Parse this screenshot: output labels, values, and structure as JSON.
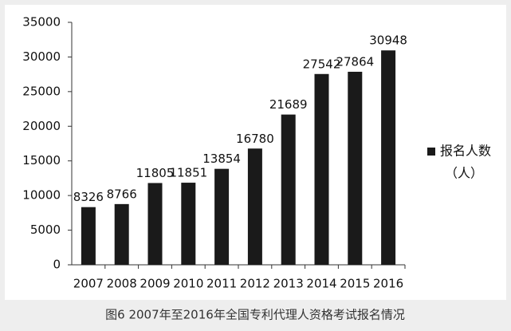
{
  "chart_data": {
    "type": "bar",
    "caption": "图6   2007年至2016年全国专利代理人资格考试报名情况",
    "categories": [
      "2007",
      "2008",
      "2009",
      "2010",
      "2011",
      "2012",
      "2013",
      "2014",
      "2015",
      "2016"
    ],
    "series": [
      {
        "name": "报名人数",
        "color": "#1a1a1a",
        "values": [
          8326,
          8766,
          11805,
          11851,
          13854,
          16780,
          21689,
          27542,
          27864,
          30948
        ]
      }
    ],
    "legend_unit": "（人）",
    "ylim": [
      0,
      35000
    ],
    "yticks": [
      0,
      5000,
      10000,
      15000,
      20000,
      25000,
      30000,
      35000
    ],
    "grid": false
  }
}
